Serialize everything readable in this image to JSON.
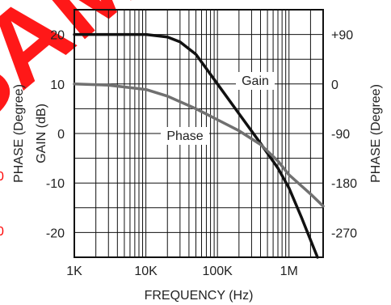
{
  "chart_data": {
    "type": "line",
    "xlabel": "FREQUENCY (Hz)",
    "ylabel_left": "GAIN (dB)",
    "ylabel_right": "PHASE (Degree)",
    "ylabel_left_secondary": "PHASE (Degree)",
    "x_scale": "log",
    "xlim": [
      1000,
      3000000
    ],
    "ylim_left": [
      -25,
      25
    ],
    "ylim_right": [
      -315,
      135
    ],
    "x_ticks": [
      {
        "value": 1000,
        "label": "1K"
      },
      {
        "value": 10000,
        "label": "10K"
      },
      {
        "value": 100000,
        "label": "100K"
      },
      {
        "value": 1000000,
        "label": "1M"
      }
    ],
    "y_ticks_left": [
      {
        "value": 20,
        "label": "20"
      },
      {
        "value": 10,
        "label": "10"
      },
      {
        "value": 0,
        "label": "0"
      },
      {
        "value": -10,
        "label": "-10"
      },
      {
        "value": -20,
        "label": "-20"
      }
    ],
    "y_ticks_right": [
      {
        "value": 90,
        "label": "+90"
      },
      {
        "value": 0,
        "label": "0"
      },
      {
        "value": -90,
        "label": "-90"
      },
      {
        "value": -180,
        "label": "-180"
      },
      {
        "value": -270,
        "label": "-270"
      }
    ],
    "grid": true,
    "series": [
      {
        "name": "Gain",
        "axis": "left",
        "color": "#111111",
        "x": [
          1000,
          3000,
          10000,
          20000,
          30000,
          50000,
          100000,
          200000,
          400000,
          700000,
          1000000,
          1500000,
          2500000
        ],
        "y": [
          20,
          20,
          20,
          19.5,
          18.5,
          16,
          10,
          4,
          -2,
          -7,
          -11,
          -17,
          -25
        ]
      },
      {
        "name": "Phase",
        "axis": "right",
        "color": "#707070",
        "x": [
          1000,
          3000,
          10000,
          20000,
          50000,
          100000,
          200000,
          400000,
          700000,
          1000000,
          2000000,
          3000000
        ],
        "y": [
          0,
          -2,
          -10,
          -22,
          -45,
          -65,
          -85,
          -110,
          -140,
          -165,
          -200,
          -222
        ]
      }
    ],
    "annotations": [
      {
        "text": "Gain",
        "series": "Gain"
      },
      {
        "text": "Phase",
        "series": "Phase"
      }
    ]
  },
  "watermark": {
    "text": "SAMPLE",
    "color": "#ff0000",
    "partial_tick_labels": [
      "0",
      "0"
    ]
  }
}
